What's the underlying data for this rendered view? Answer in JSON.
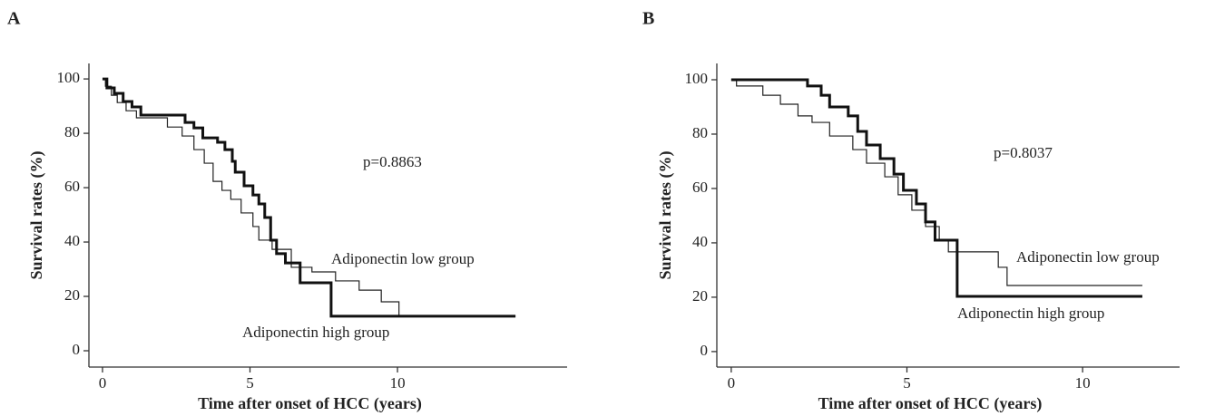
{
  "chart_data": [
    {
      "type": "step",
      "panel": "A",
      "x_label": "Time after onset of HCC (years)",
      "y_label": "Survival rates (%)",
      "annotation": "p=0.8863",
      "xlim": [
        -0.46,
        15.75
      ],
      "ylim": [
        -6,
        105.7
      ],
      "xticks": [
        0,
        5,
        10
      ],
      "yticks": [
        0,
        20,
        40,
        60,
        80,
        100
      ],
      "series": [
        {
          "name": "Adiponectin low group",
          "color": "#222222",
          "line_width": 1.2,
          "x": [
            0,
            0.1,
            0.3,
            0.5,
            0.8,
            1.15,
            2.2,
            2.7,
            3.1,
            3.45,
            3.75,
            4.05,
            4.35,
            4.7,
            5.1,
            5.3,
            5.75,
            6.4,
            7.1,
            7.9,
            8.7,
            9.45,
            10.05,
            14.0
          ],
          "values": [
            100,
            97.3,
            94,
            91.3,
            88.3,
            85.7,
            82.3,
            79,
            74,
            69,
            62.3,
            59,
            55.7,
            50.7,
            45.7,
            40.7,
            37.3,
            30.7,
            29,
            25.7,
            22.3,
            18,
            12.7,
            12.7
          ]
        },
        {
          "name": "Adiponectin high group",
          "color": "#111111",
          "line_width": 3,
          "x": [
            0,
            0.15,
            0.4,
            0.7,
            1.0,
            1.3,
            2.8,
            3.1,
            3.4,
            3.9,
            4.15,
            4.4,
            4.5,
            4.8,
            5.1,
            5.3,
            5.5,
            5.7,
            5.9,
            6.2,
            6.7,
            7.75,
            14.0
          ],
          "values": [
            100,
            96.7,
            94.7,
            91.7,
            89.7,
            86.7,
            84,
            82,
            78.3,
            76.7,
            74,
            69.7,
            65.7,
            60.7,
            57.3,
            54,
            49,
            40.7,
            35.7,
            32.3,
            25,
            12.7,
            12.7
          ]
        }
      ]
    },
    {
      "type": "step",
      "panel": "B",
      "x_label": "Time after onset of HCC (years)",
      "y_label": "Survival rates (%)",
      "annotation": "p=0.8037",
      "xlim": [
        -0.41,
        12.76
      ],
      "ylim": [
        -5.7,
        106
      ],
      "xticks": [
        0,
        5,
        10
      ],
      "yticks": [
        0,
        20,
        40,
        60,
        80,
        100
      ],
      "series": [
        {
          "name": "Adiponectin low group",
          "color": "#222222",
          "line_width": 1.2,
          "x": [
            0,
            0.15,
            0.9,
            1.4,
            1.9,
            2.3,
            2.8,
            3.46,
            3.85,
            4.37,
            4.75,
            5.14,
            5.53,
            5.92,
            6.18,
            7.6,
            7.85,
            11.7
          ],
          "values": [
            100,
            97.7,
            94.3,
            91,
            86.7,
            84.3,
            79.3,
            74.3,
            69.3,
            64.3,
            57.7,
            52,
            46,
            41,
            36.7,
            31,
            24.3,
            24.3
          ]
        },
        {
          "name": "Adiponectin high group",
          "color": "#111111",
          "line_width": 3,
          "x": [
            0,
            2.17,
            2.56,
            2.8,
            3.33,
            3.6,
            3.85,
            4.24,
            4.63,
            4.9,
            5.27,
            5.53,
            5.8,
            6.43,
            11.7
          ],
          "values": [
            100,
            97.7,
            94.3,
            90,
            86.7,
            81,
            76,
            71,
            65.3,
            59.3,
            54.3,
            47.7,
            41,
            20.3,
            20.3
          ]
        }
      ]
    }
  ]
}
